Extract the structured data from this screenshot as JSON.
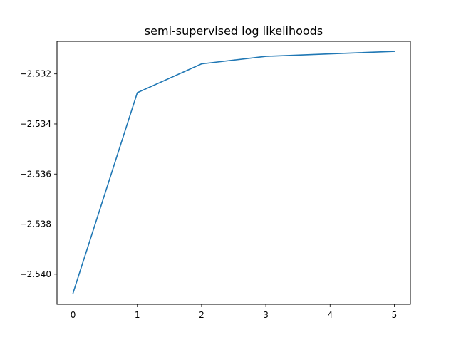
{
  "chart_data": {
    "type": "line",
    "title": "semi-supervised log likelihoods",
    "xlabel": "",
    "ylabel": "",
    "x": [
      0,
      1,
      2,
      3,
      4,
      5
    ],
    "series": [
      {
        "values": [
          -2.54075,
          -2.53275,
          -2.5316,
          -2.5313,
          -2.5312,
          -2.5311
        ],
        "color": "#1f77b4"
      }
    ],
    "xlim": [
      -0.25,
      5.25
    ],
    "ylim": [
      -2.5412,
      -2.5307
    ],
    "xticks": [
      0,
      1,
      2,
      3,
      4,
      5
    ],
    "xtick_labels": [
      "0",
      "1",
      "2",
      "3",
      "4",
      "5"
    ],
    "yticks": [
      -2.54,
      -2.538,
      -2.536,
      -2.534,
      -2.532
    ],
    "ytick_labels": [
      "−2.540",
      "−2.538",
      "−2.536",
      "−2.534",
      "−2.532"
    ],
    "grid": false,
    "legend": "none"
  }
}
